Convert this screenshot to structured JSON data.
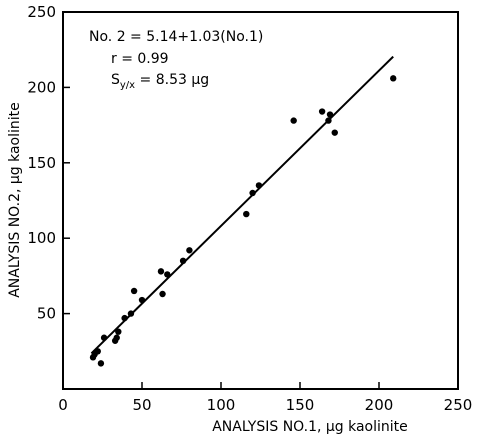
{
  "chart_data": {
    "type": "scatter",
    "title": "",
    "xlabel": "ANALYSIS NO.1, μg kaolinite",
    "ylabel": "ANALYSIS NO.2, μg kaolinite",
    "xlim": [
      0,
      250
    ],
    "ylim": [
      0,
      250
    ],
    "xticks": [
      "0",
      "50",
      "100",
      "150",
      "200",
      "250"
    ],
    "yticks": [
      "50",
      "100",
      "150",
      "200",
      "250"
    ],
    "grid": false,
    "series": [
      {
        "points": [
          [
            19,
            21
          ],
          [
            20,
            23
          ],
          [
            22,
            25
          ],
          [
            24,
            17
          ],
          [
            26,
            34
          ],
          [
            33,
            32
          ],
          [
            34,
            34
          ],
          [
            35,
            38
          ],
          [
            39,
            47
          ],
          [
            43,
            50
          ],
          [
            45,
            65
          ],
          [
            50,
            59
          ],
          [
            62,
            78
          ],
          [
            63,
            63
          ],
          [
            66,
            76
          ],
          [
            76,
            85
          ],
          [
            80,
            92
          ],
          [
            116,
            116
          ],
          [
            120,
            130
          ],
          [
            124,
            135
          ],
          [
            146,
            178
          ],
          [
            164,
            184
          ],
          [
            168,
            178
          ],
          [
            169,
            182
          ],
          [
            172,
            170
          ],
          [
            209,
            206
          ]
        ]
      }
    ],
    "fit_line": {
      "x": [
        18,
        209
      ],
      "y": [
        23.68,
        220.41
      ]
    },
    "annotations": {
      "equation": "No. 2 = 5.14+1.03(No.1)",
      "r": "r = 0.99",
      "syx_s": "S",
      "syx_sub": "y/x",
      "syx_value": " = 8.53 μg"
    }
  }
}
